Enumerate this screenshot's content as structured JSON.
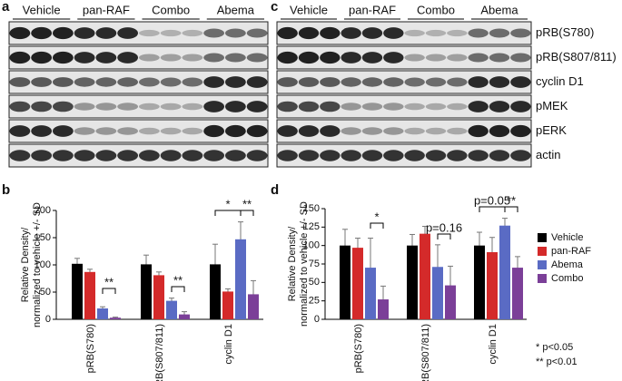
{
  "panel_labels": [
    "a",
    "b",
    "c",
    "d"
  ],
  "blots": {
    "groups": [
      "Vehicle",
      "pan-RAF",
      "Combo",
      "Abema"
    ],
    "rows": [
      "pRB(S780)",
      "pRB(S807/811)",
      "cyclin D1",
      "pMEK",
      "pERK",
      "actin"
    ]
  },
  "chart_data": [
    {
      "type": "bar",
      "y_label": [
        "Relative Density/",
        "normalized to vehicle +/- SD"
      ],
      "categories": [
        "pRB(S780)",
        "pRB(S807/811)",
        "cyclin D1"
      ],
      "series": [
        {
          "name": "Vehicle",
          "color": "#000000",
          "values": [
            102,
            101,
            101
          ],
          "errors": [
            10,
            17,
            37
          ]
        },
        {
          "name": "pan-RAF",
          "color": "#d42a2a",
          "values": [
            87,
            81,
            51
          ],
          "errors": [
            5,
            6,
            5
          ]
        },
        {
          "name": "Abema",
          "color": "#5a6bc4",
          "values": [
            20,
            34,
            147
          ],
          "errors": [
            3,
            5,
            32
          ]
        },
        {
          "name": "Combo",
          "color": "#7b3f98",
          "values": [
            3,
            9,
            46
          ],
          "errors": [
            1,
            5,
            25
          ]
        }
      ],
      "ylim": [
        0,
        200
      ],
      "yticks": [
        0,
        50,
        100,
        150,
        200
      ],
      "annotations": [
        "**",
        "**",
        "*",
        "**"
      ]
    },
    {
      "type": "bar",
      "y_label": [
        "Relative Density/",
        "normalized to vehicle +/- SD"
      ],
      "categories": [
        "pRB(S780)",
        "pRB(S807/811)",
        "cyclin D1"
      ],
      "series": [
        {
          "name": "Vehicle",
          "color": "#000000",
          "values": [
            100,
            100,
            100
          ],
          "errors": [
            22,
            15,
            18
          ]
        },
        {
          "name": "pan-RAF",
          "color": "#d42a2a",
          "values": [
            97,
            116,
            91
          ],
          "errors": [
            13,
            10,
            20
          ]
        },
        {
          "name": "Abema",
          "color": "#5a6bc4",
          "values": [
            70,
            71,
            127
          ],
          "errors": [
            40,
            30,
            10
          ]
        },
        {
          "name": "Combo",
          "color": "#7b3f98",
          "values": [
            27,
            46,
            70
          ],
          "errors": [
            18,
            26,
            15
          ]
        }
      ],
      "ylim": [
        0,
        150
      ],
      "yticks": [
        0,
        25,
        50,
        75,
        100,
        125,
        150
      ],
      "annotations": [
        "*",
        "p=0.16",
        "p=0.05",
        "**"
      ],
      "notes": [
        "* p<0.05",
        "** p<0.01"
      ]
    }
  ]
}
